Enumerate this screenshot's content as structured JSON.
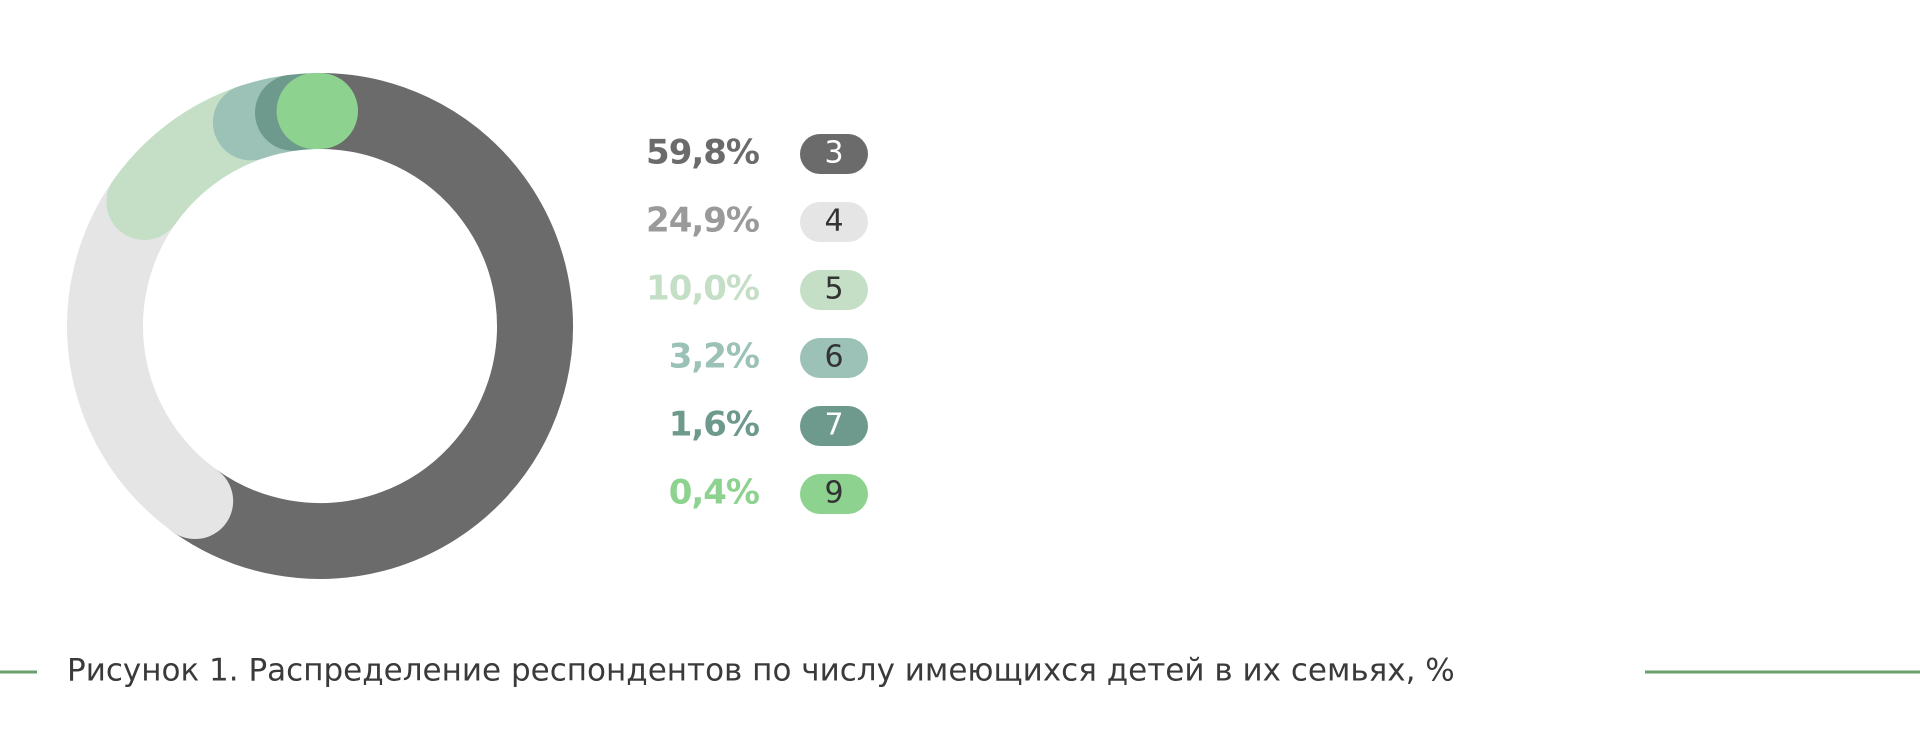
{
  "chart_data": {
    "type": "donut",
    "categories": [
      "3",
      "4",
      "5",
      "6",
      "7",
      "9"
    ],
    "values": [
      59.8,
      24.9,
      10.0,
      3.2,
      1.6,
      0.4
    ],
    "value_labels": [
      "59,8%",
      "24,9%",
      "10,0%",
      "3,2%",
      "1,6%",
      "0,4%"
    ],
    "colors": [
      "#6b6b6b",
      "#e5e5e5",
      "#c5dfc7",
      "#9cc1b6",
      "#6e9a8d",
      "#8dd38f"
    ],
    "label_colors": [
      "#6b6b6b",
      "#9a9a9a",
      "#c5dfc7",
      "#9cc1b6",
      "#6e9a8d",
      "#8dd38f"
    ],
    "caption": "Рисунок 1. Распределение респондентов по числу имеющихся детей в их семьях, %"
  }
}
